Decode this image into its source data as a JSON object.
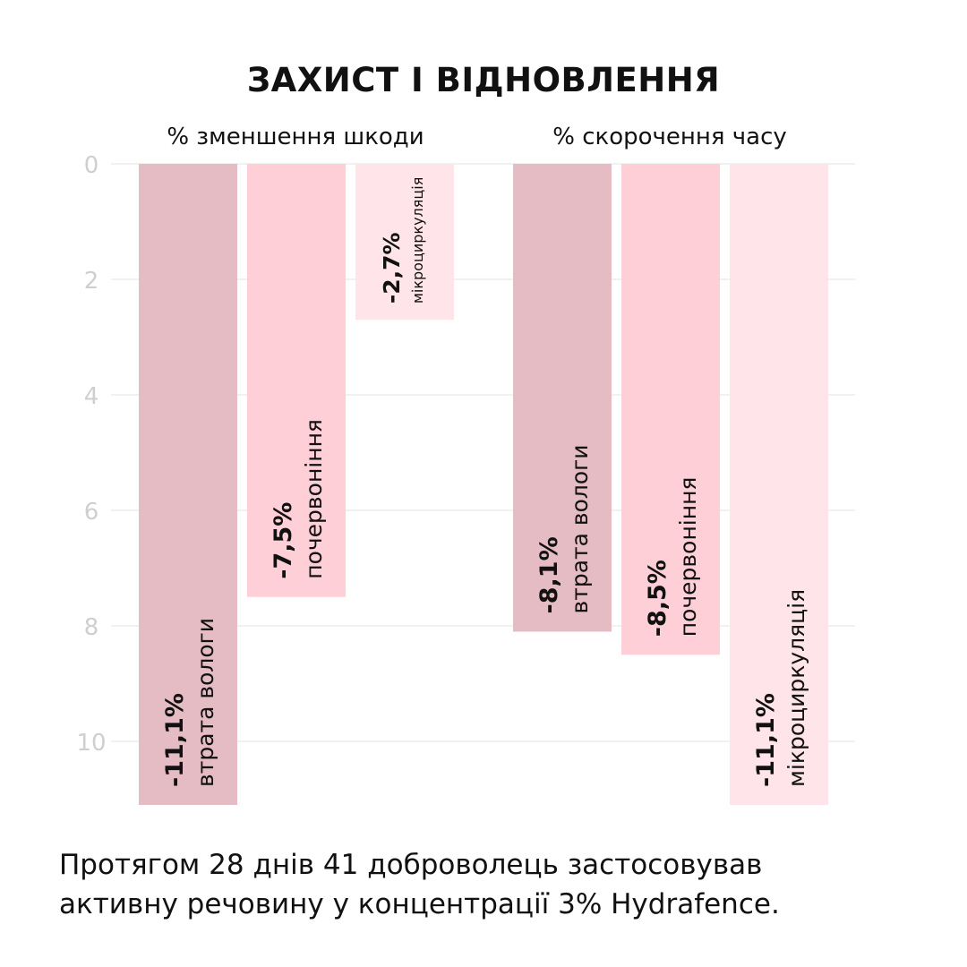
{
  "chart_data": {
    "type": "bar",
    "title": "ЗАХИСТ І ВІДНОВЛЕННЯ",
    "y_axis": {
      "ticks": [
        0,
        2,
        4,
        6,
        8,
        10
      ],
      "range": [
        0,
        11.3
      ],
      "inverted": true
    },
    "grid": true,
    "groups": [
      {
        "label": "% зменшення шкоди",
        "bars": [
          {
            "category": "втрата вологи",
            "value": 11.1,
            "value_label": "-11,1%",
            "color": "#e5bcc3"
          },
          {
            "category": "почервоніння",
            "value": 7.5,
            "value_label": "-7,5%",
            "color": "#ffcfd8"
          },
          {
            "category": "мікроциркуляція",
            "value": 2.7,
            "value_label": "-2,7%",
            "color": "#ffe4e9"
          }
        ]
      },
      {
        "label": "% скорочення часу",
        "bars": [
          {
            "category": "втрата вологи",
            "value": 8.1,
            "value_label": "-8,1%",
            "color": "#e5bcc3"
          },
          {
            "category": "почервоніння",
            "value": 8.5,
            "value_label": "-8,5%",
            "color": "#ffcfd8"
          },
          {
            "category": "мікроциркуляція",
            "value": 11.1,
            "value_label": "-11,1%",
            "color": "#ffe4e9"
          }
        ]
      }
    ]
  },
  "footnote": {
    "line1": "Протягом 28 днів 41 доброволець застосовував",
    "line2": "активну речовину у концентрації 3% Hydrafence."
  }
}
